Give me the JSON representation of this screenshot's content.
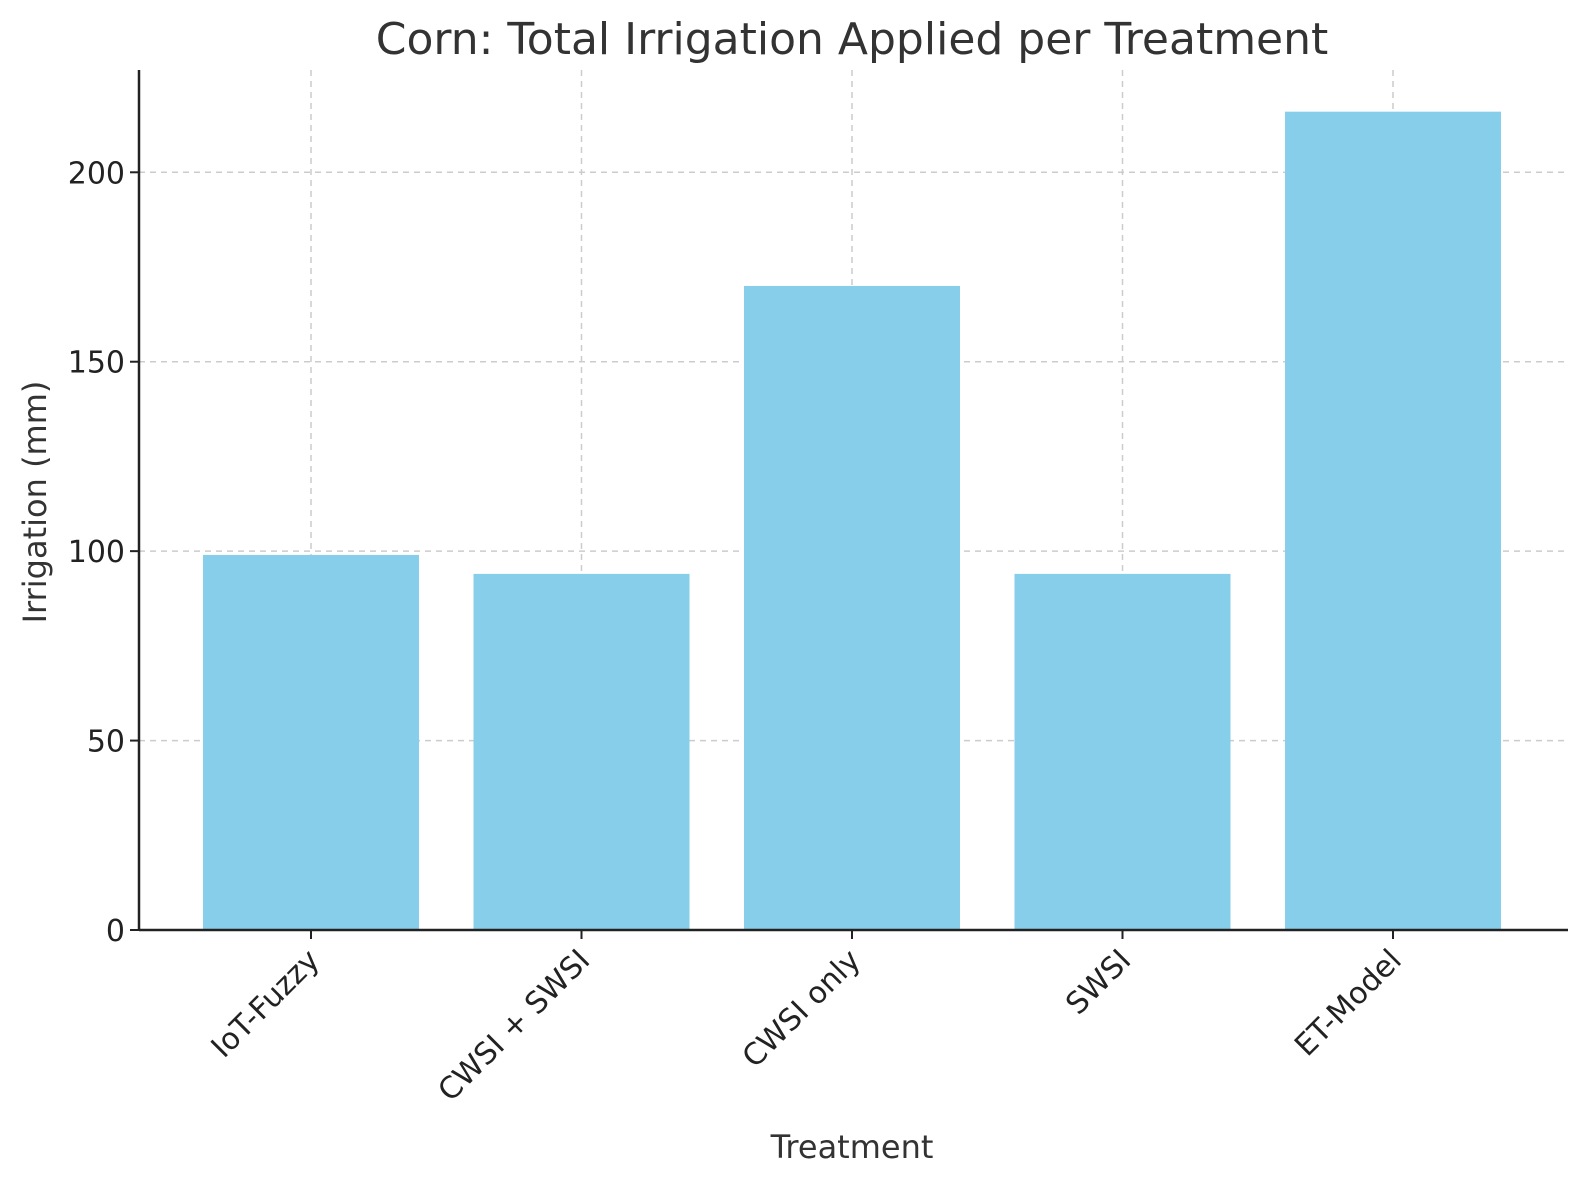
{
  "chart_data": {
    "type": "bar",
    "title": "Corn: Total Irrigation Applied per Treatment",
    "xlabel": "Treatment",
    "ylabel": "Irrigation (mm)",
    "categories": [
      "IoT-Fuzzy",
      "CWSI + SWSI",
      "CWSI only",
      "SWSI",
      "ET-Model"
    ],
    "values": [
      99,
      94,
      170,
      94,
      216
    ],
    "ylim": [
      0,
      227
    ],
    "yticks": [
      0,
      50,
      100,
      150,
      200
    ],
    "grid": true,
    "bar_color": "#87CEEB",
    "legend": "none"
  }
}
